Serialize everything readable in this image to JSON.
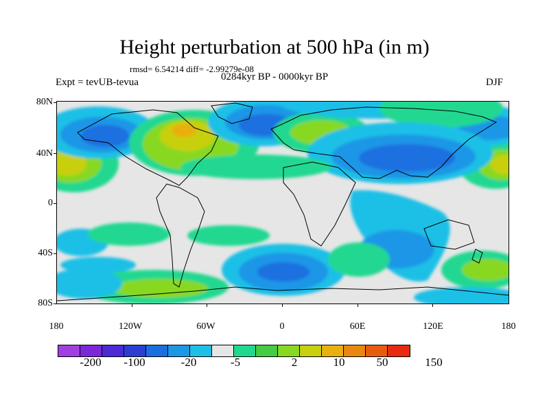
{
  "title": "Height perturbation at 500 hPa (in m)",
  "stats": "rmsd= 6.54214 diff= -2.99279e-08",
  "experiment": "Expt = tevUB-tevua",
  "period": "0284kyr BP - 0000kyr BP",
  "season": "DJF",
  "axes": {
    "lat_labels": [
      "80N",
      "40N",
      "0",
      "40S",
      "80S"
    ],
    "lon_labels": [
      "180",
      "120W",
      "60W",
      "0",
      "60E",
      "120E",
      "180"
    ]
  },
  "colorbar": {
    "colors": [
      "#a040e0",
      "#7a28d8",
      "#4d2ad6",
      "#2a3fd2",
      "#1a6fe0",
      "#1e96e6",
      "#1cc0e6",
      "#e6e6e6",
      "#20d890",
      "#44cc44",
      "#88d820",
      "#c8d010",
      "#e8b010",
      "#e88810",
      "#e85c10",
      "#e82a10"
    ],
    "labels": [
      "-200",
      "-100",
      "-20",
      "-5",
      "2",
      "10",
      "50",
      "150"
    ]
  }
}
